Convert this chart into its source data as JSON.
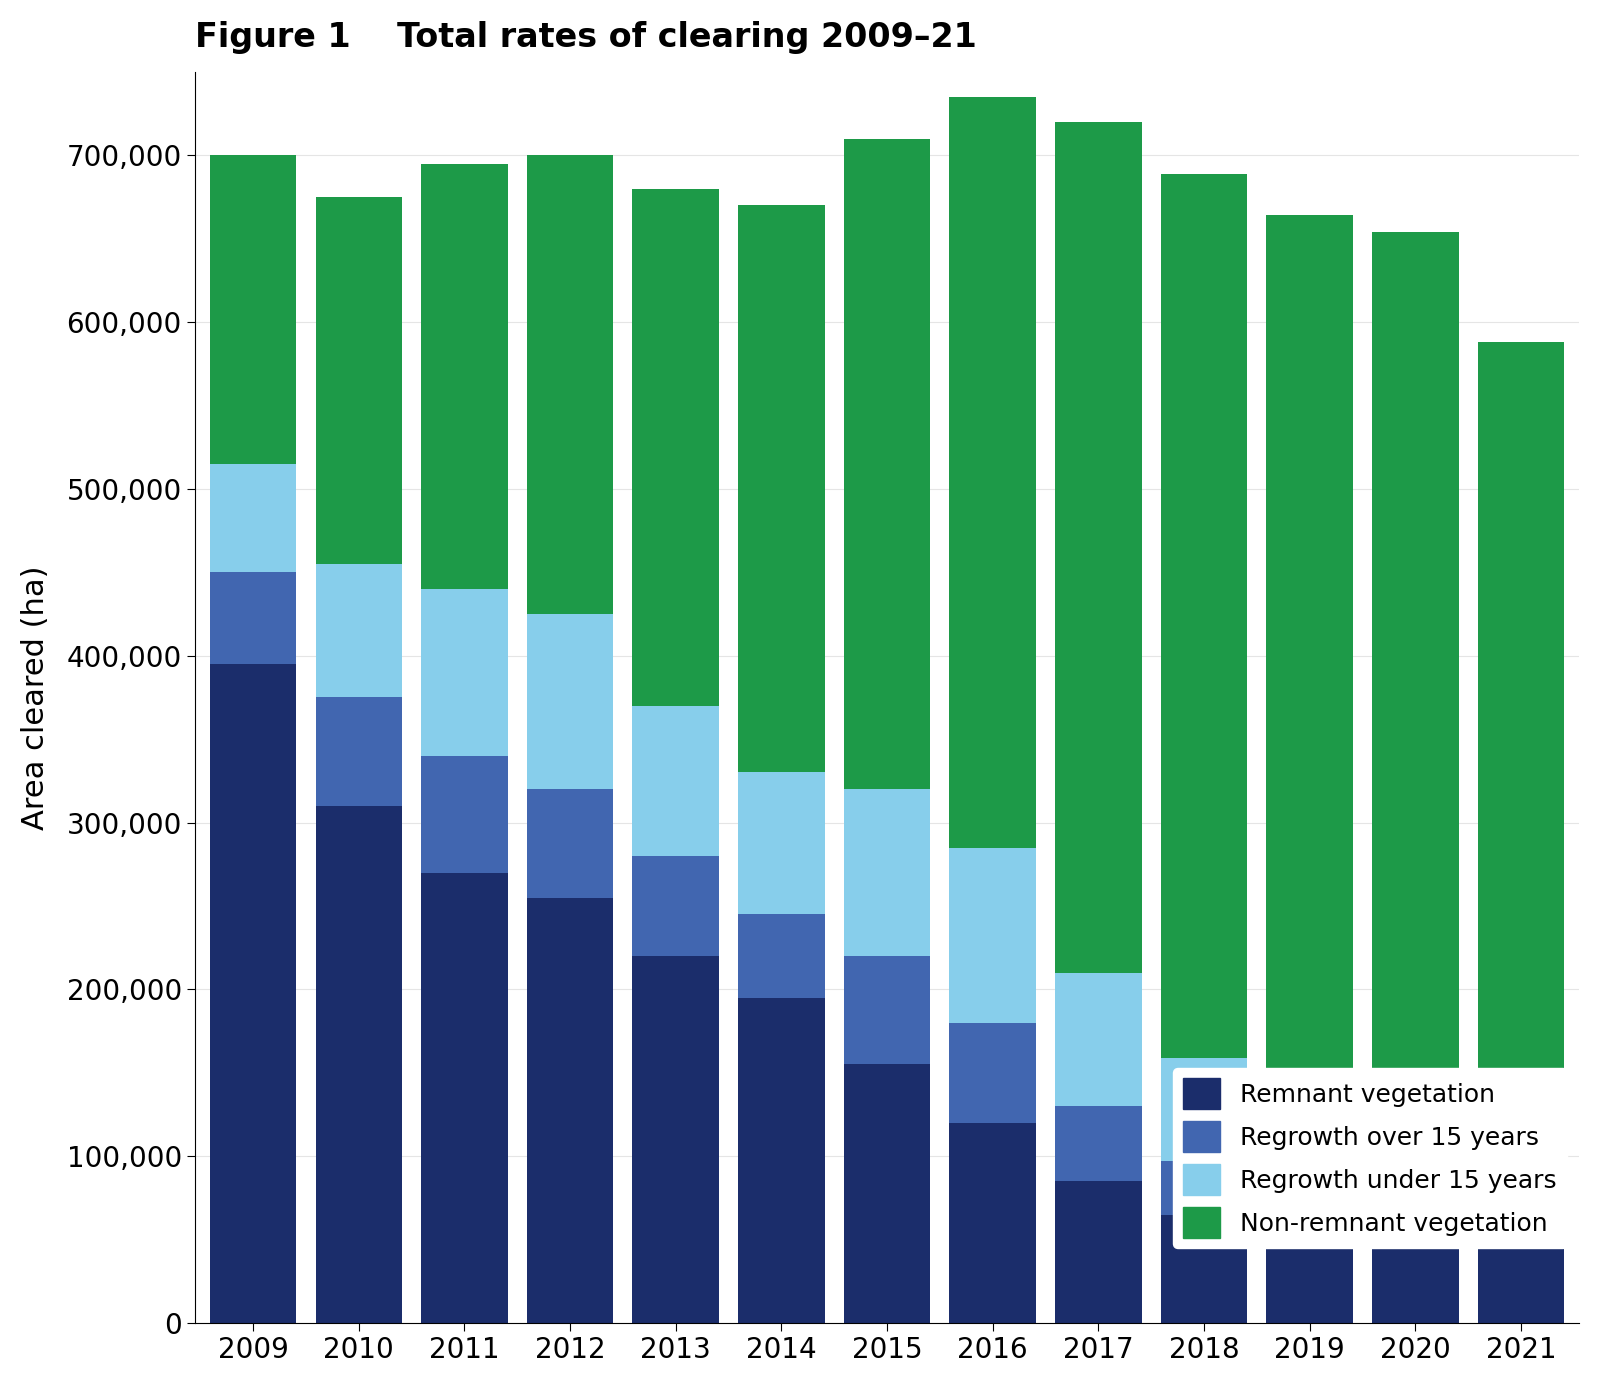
{
  "title": "Figure 1    Total rates of clearing 2009–21",
  "years": [
    2009,
    2010,
    2011,
    2012,
    2013,
    2014,
    2015,
    2016,
    2017,
    2018,
    2019,
    2020,
    2021
  ],
  "series_order": [
    "Remnant vegetation",
    "Regrowth over 15 years",
    "Regrowth under 15 years",
    "Non-remnant vegetation"
  ],
  "series": {
    "Remnant vegetation": {
      "color": "#1B2D6B",
      "values": [
        395000,
        310000,
        270000,
        255000,
        220000,
        195000,
        155000,
        120000,
        85000,
        65000,
        55000,
        50000,
        45000
      ]
    },
    "Regrowth over 15 years": {
      "color": "#4166B0",
      "values": [
        55000,
        65000,
        70000,
        65000,
        60000,
        50000,
        65000,
        60000,
        45000,
        32000,
        27000,
        22000,
        18000
      ]
    },
    "Regrowth under 15 years": {
      "color": "#87CEEB",
      "values": [
        65000,
        80000,
        100000,
        105000,
        90000,
        85000,
        100000,
        105000,
        80000,
        62000,
        52000,
        47000,
        35000
      ]
    },
    "Non-remnant vegetation": {
      "color": "#1D9A48",
      "values": [
        185000,
        220000,
        255000,
        275000,
        310000,
        340000,
        390000,
        450000,
        510000,
        530000,
        530000,
        535000,
        490000
      ]
    }
  },
  "ylim": [
    0,
    750000
  ],
  "yticks": [
    0,
    100000,
    200000,
    300000,
    400000,
    500000,
    600000,
    700000
  ],
  "ytick_labels": [
    "0",
    "100,000",
    "200,000",
    "300,000",
    "400,000",
    "500,000",
    "600,000",
    "700,000"
  ],
  "legend_items": [
    {
      "label": "Remnant vegetation",
      "color": "#1B2D6B"
    },
    {
      "label": "Regrowth over 15 years",
      "color": "#4166B0"
    },
    {
      "label": "Regrowth under 15 years",
      "color": "#87CEEB"
    },
    {
      "label": "Non-remnant vegetation",
      "color": "#1D9A48"
    }
  ],
  "background_color": "#ffffff",
  "bar_width": 0.82
}
